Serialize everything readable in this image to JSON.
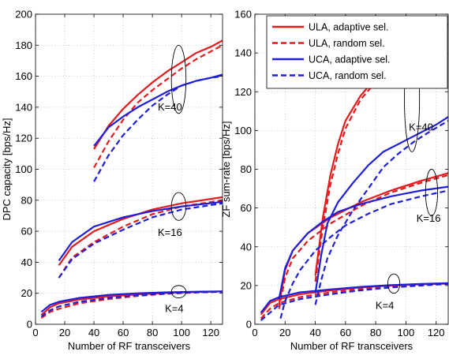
{
  "chart_data": [
    {
      "type": "line",
      "xlabel": "Number of RF transceivers",
      "ylabel": "DPC capacity [bps/Hz]",
      "xlim": [
        0,
        128
      ],
      "ylim": [
        0,
        200
      ],
      "xticks": [
        0,
        20,
        40,
        60,
        80,
        100,
        120
      ],
      "yticks": [
        0,
        20,
        40,
        60,
        80,
        100,
        120,
        140,
        160,
        180,
        200
      ],
      "grid": true,
      "series": [
        {
          "name": "ULA, adaptive sel.",
          "color": "#e41a1c",
          "dash": "solid",
          "points": [
            [
              4,
              6
            ],
            [
              10,
              11
            ],
            [
              16,
              13.5
            ],
            [
              30,
              16
            ],
            [
              50,
              18
            ],
            [
              70,
              19.3
            ],
            [
              90,
              20.2
            ],
            [
              110,
              20.8
            ],
            [
              128,
              21.2
            ],
            null,
            [
              16,
              38
            ],
            [
              25,
              50
            ],
            [
              40,
              60
            ],
            [
              60,
              68
            ],
            [
              80,
              74
            ],
            [
              100,
              78
            ],
            [
              128,
              82
            ],
            null,
            [
              40,
              113
            ],
            [
              50,
              128
            ],
            [
              60,
              139
            ],
            [
              70,
              148
            ],
            [
              80,
              156
            ],
            [
              90,
              163
            ],
            [
              100,
              169
            ],
            [
              110,
              175
            ],
            [
              120,
              179
            ],
            [
              128,
              183
            ]
          ]
        },
        {
          "name": "ULA, random sel.",
          "color": "#e41a1c",
          "dash": "dashed",
          "points": [
            [
              4,
              4
            ],
            [
              10,
              8
            ],
            [
              16,
              10
            ],
            [
              30,
              13.5
            ],
            [
              50,
              16.3
            ],
            [
              70,
              18.3
            ],
            [
              90,
              19.7
            ],
            [
              110,
              20.5
            ],
            [
              128,
              21
            ],
            null,
            [
              16,
              30
            ],
            [
              25,
              43
            ],
            [
              40,
              53
            ],
            [
              60,
              63
            ],
            [
              80,
              71
            ],
            [
              100,
              76
            ],
            [
              128,
              80
            ],
            null,
            [
              40,
              101
            ],
            [
              50,
              118
            ],
            [
              60,
              132
            ],
            [
              70,
              143
            ],
            [
              80,
              151
            ],
            [
              90,
              158
            ],
            [
              100,
              165
            ],
            [
              110,
              171
            ],
            [
              120,
              176
            ],
            [
              128,
              180
            ]
          ]
        },
        {
          "name": "UCA, adaptive sel.",
          "color": "#1f1fd9",
          "dash": "solid",
          "points": [
            [
              4,
              8
            ],
            [
              10,
              12.5
            ],
            [
              16,
              14.5
            ],
            [
              30,
              17
            ],
            [
              50,
              19
            ],
            [
              70,
              20
            ],
            [
              90,
              20.6
            ],
            [
              110,
              21
            ],
            [
              128,
              21.2
            ],
            null,
            [
              16,
              41
            ],
            [
              25,
              53
            ],
            [
              40,
              63
            ],
            [
              60,
              69
            ],
            [
              80,
              73
            ],
            [
              100,
              76
            ],
            [
              128,
              79
            ],
            null,
            [
              40,
              115
            ],
            [
              50,
              127
            ],
            [
              60,
              134
            ],
            [
              70,
              140
            ],
            [
              80,
              145
            ],
            [
              90,
              150
            ],
            [
              100,
              154
            ],
            [
              110,
              157
            ],
            [
              120,
              159
            ],
            [
              128,
              161
            ]
          ]
        },
        {
          "name": "UCA, random sel.",
          "color": "#1f1fd9",
          "dash": "dashed",
          "points": [
            [
              4,
              5
            ],
            [
              10,
              9
            ],
            [
              16,
              11.5
            ],
            [
              30,
              14.5
            ],
            [
              50,
              17
            ],
            [
              70,
              18.7
            ],
            [
              90,
              19.9
            ],
            [
              110,
              20.6
            ],
            [
              128,
              21
            ],
            null,
            [
              16,
              30
            ],
            [
              25,
              42
            ],
            [
              40,
              52
            ],
            [
              60,
              61
            ],
            [
              80,
              69
            ],
            [
              100,
              74
            ],
            [
              128,
              78
            ],
            null,
            [
              40,
              92
            ],
            [
              50,
              109
            ],
            [
              60,
              122
            ],
            [
              70,
              132
            ],
            [
              80,
              141
            ],
            [
              90,
              148
            ],
            [
              100,
              154
            ],
            [
              110,
              157
            ],
            [
              120,
              159
            ],
            [
              128,
              160
            ]
          ]
        }
      ],
      "annotations": [
        {
          "text": "K=40",
          "x": 92,
          "y": 138,
          "ell": {
            "cx": 98,
            "cy": 158,
            "rx": 5,
            "ry": 22
          }
        },
        {
          "text": "K=16",
          "x": 92,
          "y": 57,
          "ell": {
            "cx": 98,
            "cy": 76,
            "rx": 5,
            "ry": 9
          }
        },
        {
          "text": "K=4",
          "x": 95,
          "y": 8,
          "ell": {
            "cx": 98,
            "cy": 21,
            "rx": 5,
            "ry": 4
          }
        }
      ]
    },
    {
      "type": "line",
      "xlabel": "Number of RF transceivers",
      "ylabel": "ZF sum-rate [bps/Hz]",
      "xlim": [
        0,
        128
      ],
      "ylim": [
        0,
        160
      ],
      "xticks": [
        0,
        20,
        40,
        60,
        80,
        100,
        120
      ],
      "yticks": [
        0,
        20,
        40,
        60,
        80,
        100,
        120,
        140,
        160
      ],
      "grid": true,
      "legend": {
        "position": "top-right"
      },
      "series": [
        {
          "name": "ULA, adaptive sel.",
          "color": "#e41a1c",
          "dash": "solid",
          "points": [
            [
              4,
              5
            ],
            [
              10,
              11
            ],
            [
              16,
              13
            ],
            [
              30,
              15.5
            ],
            [
              50,
              17.5
            ],
            [
              70,
              19
            ],
            [
              90,
              20
            ],
            [
              110,
              20.6
            ],
            [
              128,
              21
            ],
            null,
            [
              16,
              10
            ],
            [
              20,
              28
            ],
            [
              25,
              38
            ],
            [
              35,
              47
            ],
            [
              50,
              55
            ],
            [
              70,
              63
            ],
            [
              90,
              69
            ],
            [
              110,
              74
            ],
            [
              128,
              78
            ],
            null,
            [
              40,
              25
            ],
            [
              45,
              55
            ],
            [
              50,
              77
            ],
            [
              55,
              93
            ],
            [
              60,
              105
            ],
            [
              70,
              118
            ],
            [
              80,
              127
            ],
            [
              90,
              134
            ],
            [
              100,
              140
            ],
            [
              110,
              146
            ],
            [
              120,
              151
            ],
            [
              128,
              155
            ]
          ]
        },
        {
          "name": "ULA, random sel.",
          "color": "#e41a1c",
          "dash": "dashed",
          "points": [
            [
              4,
              3
            ],
            [
              10,
              8
            ],
            [
              16,
              11
            ],
            [
              30,
              14
            ],
            [
              50,
              16.5
            ],
            [
              70,
              18.3
            ],
            [
              90,
              19.6
            ],
            [
              110,
              20.4
            ],
            [
              128,
              21
            ],
            null,
            [
              16,
              8
            ],
            [
              20,
              24
            ],
            [
              25,
              34
            ],
            [
              35,
              43
            ],
            [
              50,
              52
            ],
            [
              70,
              61
            ],
            [
              90,
              68
            ],
            [
              110,
              73
            ],
            [
              128,
              77
            ],
            null,
            [
              40,
              22
            ],
            [
              45,
              50
            ],
            [
              50,
              72
            ],
            [
              55,
              88
            ],
            [
              60,
              101
            ],
            [
              70,
              116
            ],
            [
              80,
              125
            ],
            [
              90,
              133
            ],
            [
              100,
              139
            ],
            [
              110,
              145
            ],
            [
              120,
              150
            ],
            [
              128,
              154
            ]
          ]
        },
        {
          "name": "UCA, adaptive sel.",
          "color": "#1f1fd9",
          "dash": "solid",
          "points": [
            [
              4,
              6
            ],
            [
              10,
              12
            ],
            [
              16,
              14
            ],
            [
              30,
              16.5
            ],
            [
              50,
              18
            ],
            [
              70,
              19.3
            ],
            [
              90,
              20.2
            ],
            [
              110,
              20.8
            ],
            [
              128,
              21.2
            ],
            null,
            [
              16,
              13
            ],
            [
              20,
              29
            ],
            [
              25,
              38
            ],
            [
              35,
              47
            ],
            [
              45,
              53
            ],
            [
              55,
              58
            ],
            [
              70,
              62
            ],
            [
              90,
              66
            ],
            [
              110,
              69
            ],
            [
              128,
              71
            ],
            null,
            [
              40,
              16
            ],
            [
              44,
              36
            ],
            [
              48,
              52
            ],
            [
              55,
              63
            ],
            [
              65,
              73
            ],
            [
              75,
              82
            ],
            [
              85,
              89
            ],
            [
              100,
              95
            ],
            [
              110,
              99
            ],
            [
              120,
              103
            ],
            [
              128,
              107
            ]
          ]
        },
        {
          "name": "UCA, random sel.",
          "color": "#1f1fd9",
          "dash": "dashed",
          "points": [
            [
              4,
              2
            ],
            [
              10,
              6
            ],
            [
              16,
              10
            ],
            [
              30,
              13
            ],
            [
              50,
              15.5
            ],
            [
              70,
              17.5
            ],
            [
              90,
              19
            ],
            [
              110,
              20
            ],
            [
              128,
              20.8
            ],
            null,
            [
              17,
              3
            ],
            [
              20,
              12
            ],
            [
              25,
              21
            ],
            [
              30,
              28
            ],
            [
              40,
              38
            ],
            [
              50,
              45
            ],
            [
              60,
              51
            ],
            [
              75,
              57
            ],
            [
              90,
              62
            ],
            [
              110,
              66
            ],
            [
              128,
              69
            ],
            null,
            [
              40,
              10
            ],
            [
              44,
              23
            ],
            [
              48,
              34
            ],
            [
              55,
              46
            ],
            [
              65,
              59
            ],
            [
              75,
              70
            ],
            [
              85,
              81
            ],
            [
              95,
              88
            ],
            [
              105,
              94
            ],
            [
              115,
              99
            ],
            [
              128,
              105
            ]
          ]
        }
      ],
      "annotations": [
        {
          "text": "K=40",
          "x": 110,
          "y": 100,
          "ell": {
            "cx": 104,
            "cy": 116,
            "rx": 5,
            "ry": 27
          }
        },
        {
          "text": "K=16",
          "x": 115,
          "y": 53,
          "ell": {
            "cx": 117,
            "cy": 68,
            "rx": 4,
            "ry": 12
          }
        },
        {
          "text": "K=4",
          "x": 86,
          "y": 8,
          "ell": {
            "cx": 92,
            "cy": 21,
            "rx": 4,
            "ry": 5
          }
        }
      ]
    }
  ]
}
